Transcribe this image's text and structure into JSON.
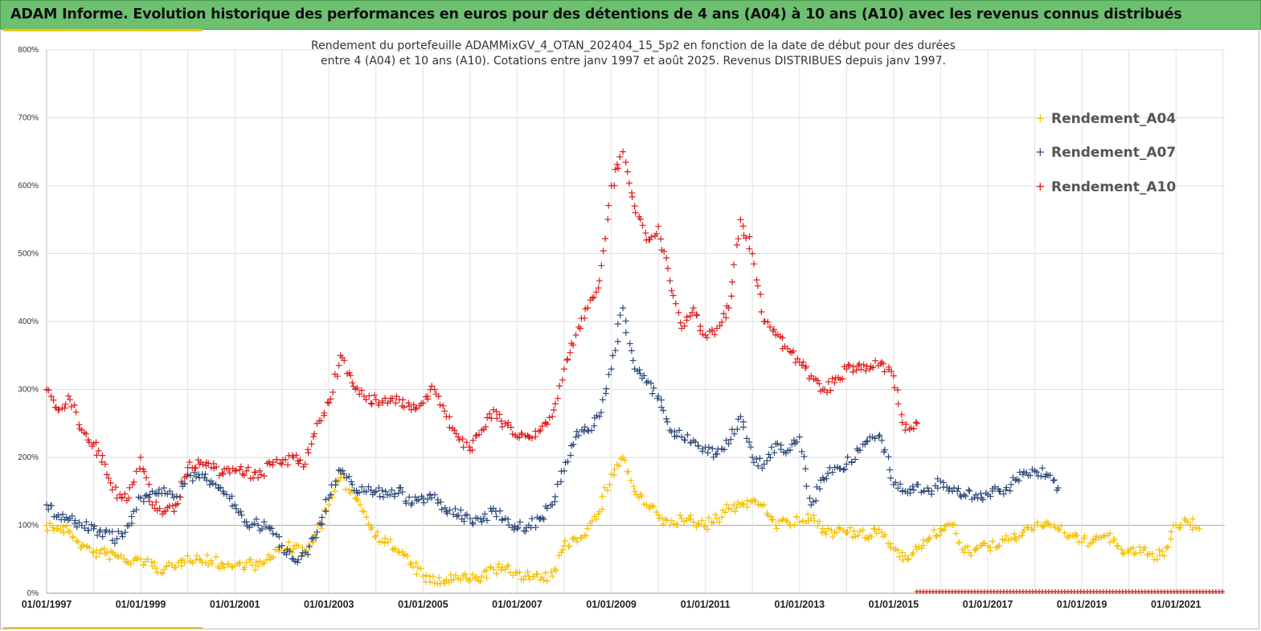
{
  "header": {
    "title": "ADAM Informe. Evolution historique des performances en euros pour des détentions de 4 ans (A04) à 10 ans (A10) avec les revenus connus distribués"
  },
  "chart_data": {
    "type": "scatter",
    "title_lines": [
      "Rendement du portefeuille ADAMMixGV_4_OTAN_202404_15_5p2  en fonction de la date de début pour des durées",
      "entre 4 (A04) et 10 ans (A10). Cotations entre janv 1997 et août 2025. Revenus DISTRIBUES depuis janv 1997."
    ],
    "xlabel": "",
    "ylabel": "",
    "xlim": [
      "1997-01-01",
      "2022-01-15"
    ],
    "ylim": [
      0,
      800
    ],
    "y_ticks": [
      "0%",
      "100%",
      "200%",
      "300%",
      "400%",
      "500%",
      "600%",
      "700%",
      "800%"
    ],
    "x_ticks": [
      "01/01/1997",
      "01/01/1999",
      "01/01/2001",
      "01/01/2003",
      "01/01/2005",
      "01/01/2007",
      "01/01/2009",
      "01/01/2011",
      "01/01/2013",
      "01/01/2015",
      "01/01/2017",
      "01/01/2019",
      "01/01/2021"
    ],
    "grid": true,
    "legend_position": "top-right",
    "marker": "+",
    "series": [
      {
        "name": "Rendement_A04",
        "color": "#f5c000",
        "x": [
          "1997-01-01",
          "1997-04-01",
          "1997-07-01",
          "1997-10-01",
          "1998-01-01",
          "1998-04-01",
          "1998-07-01",
          "1998-10-01",
          "1999-01-01",
          "1999-04-01",
          "1999-07-01",
          "1999-10-01",
          "2000-01-01",
          "2000-04-01",
          "2000-07-01",
          "2000-10-01",
          "2001-01-01",
          "2001-04-01",
          "2001-07-01",
          "2001-10-01",
          "2002-01-01",
          "2002-04-01",
          "2002-07-01",
          "2002-10-01",
          "2003-01-01",
          "2003-04-01",
          "2003-07-01",
          "2003-10-01",
          "2004-01-01",
          "2004-04-01",
          "2004-07-01",
          "2004-10-01",
          "2005-01-01",
          "2005-04-01",
          "2005-07-01",
          "2005-10-01",
          "2006-01-01",
          "2006-04-01",
          "2006-07-01",
          "2006-10-01",
          "2007-01-01",
          "2007-04-01",
          "2007-07-01",
          "2007-10-01",
          "2008-01-01",
          "2008-04-01",
          "2008-07-01",
          "2008-10-01",
          "2009-01-01",
          "2009-04-01",
          "2009-07-01",
          "2009-10-01",
          "2010-01-01",
          "2010-04-01",
          "2010-07-01",
          "2010-10-01",
          "2011-01-01",
          "2011-04-01",
          "2011-07-01",
          "2011-10-01",
          "2012-01-01",
          "2012-04-01",
          "2012-07-01",
          "2012-10-01",
          "2013-01-01",
          "2013-04-01",
          "2013-07-01",
          "2013-10-01",
          "2014-01-01",
          "2014-04-01",
          "2014-07-01",
          "2014-10-01",
          "2015-01-01",
          "2015-04-01",
          "2015-07-01",
          "2015-10-01",
          "2016-01-01",
          "2016-04-01",
          "2016-07-01",
          "2016-10-01",
          "2017-01-01",
          "2017-04-01",
          "2017-07-01",
          "2017-10-01",
          "2018-01-01",
          "2018-04-01",
          "2018-07-01",
          "2018-10-01",
          "2019-01-01",
          "2019-04-01",
          "2019-07-01",
          "2019-10-01",
          "2020-01-01",
          "2020-04-01",
          "2020-07-01",
          "2020-10-01",
          "2021-01-01",
          "2021-04-01",
          "2021-07-01"
        ],
        "values": [
          100,
          95,
          90,
          70,
          60,
          58,
          55,
          45,
          50,
          40,
          35,
          38,
          55,
          50,
          48,
          42,
          40,
          45,
          40,
          50,
          70,
          65,
          60,
          90,
          130,
          170,
          150,
          120,
          85,
          75,
          60,
          45,
          25,
          15,
          20,
          22,
          20,
          25,
          35,
          35,
          30,
          25,
          20,
          25,
          70,
          80,
          95,
          120,
          175,
          200,
          150,
          130,
          115,
          100,
          110,
          105,
          100,
          110,
          125,
          130,
          135,
          130,
          100,
          105,
          105,
          110,
          95,
          90,
          90,
          85,
          85,
          90,
          65,
          55,
          65,
          80,
          95,
          100,
          60,
          65,
          70,
          70,
          80,
          90,
          100,
          105,
          95,
          85,
          75,
          80,
          85,
          70,
          60,
          60,
          58,
          55,
          100,
          105,
          95
        ]
      },
      {
        "name": "Rendement_A07",
        "color": "#2e4a7a",
        "x": [
          "1997-01-01",
          "1997-04-01",
          "1997-07-01",
          "1997-10-01",
          "1998-01-01",
          "1998-04-01",
          "1998-07-01",
          "1998-10-01",
          "1999-01-01",
          "1999-04-01",
          "1999-07-01",
          "1999-10-01",
          "2000-01-01",
          "2000-04-01",
          "2000-07-01",
          "2000-10-01",
          "2001-01-01",
          "2001-04-01",
          "2001-07-01",
          "2001-10-01",
          "2002-01-01",
          "2002-04-01",
          "2002-07-01",
          "2002-10-01",
          "2003-01-01",
          "2003-04-01",
          "2003-07-01",
          "2003-10-01",
          "2004-01-01",
          "2004-04-01",
          "2004-07-01",
          "2004-10-01",
          "2005-01-01",
          "2005-04-01",
          "2005-07-01",
          "2005-10-01",
          "2006-01-01",
          "2006-04-01",
          "2006-07-01",
          "2006-10-01",
          "2007-01-01",
          "2007-04-01",
          "2007-07-01",
          "2007-10-01",
          "2008-01-01",
          "2008-04-01",
          "2008-07-01",
          "2008-10-01",
          "2009-01-01",
          "2009-04-01",
          "2009-07-01",
          "2009-10-01",
          "2010-01-01",
          "2010-04-01",
          "2010-07-01",
          "2010-10-01",
          "2011-01-01",
          "2011-04-01",
          "2011-07-01",
          "2011-10-01",
          "2012-01-01",
          "2012-04-01",
          "2012-07-01",
          "2012-10-01",
          "2013-01-01",
          "2013-04-01",
          "2013-07-01",
          "2013-10-01",
          "2014-01-01",
          "2014-04-01",
          "2014-07-01",
          "2014-10-01",
          "2015-01-01",
          "2015-04-01",
          "2015-07-01",
          "2015-10-01",
          "2016-01-01",
          "2016-04-01",
          "2016-07-01",
          "2016-10-01",
          "2017-01-01",
          "2017-04-01",
          "2017-07-01",
          "2017-10-01",
          "2018-01-01",
          "2018-04-01",
          "2018-07-01"
        ],
        "values": [
          130,
          115,
          110,
          100,
          95,
          90,
          80,
          100,
          140,
          150,
          155,
          130,
          175,
          170,
          165,
          150,
          130,
          105,
          100,
          95,
          70,
          50,
          60,
          90,
          140,
          180,
          160,
          150,
          150,
          145,
          155,
          130,
          140,
          145,
          120,
          115,
          110,
          105,
          125,
          110,
          95,
          100,
          110,
          130,
          180,
          230,
          240,
          260,
          330,
          420,
          330,
          310,
          290,
          240,
          230,
          225,
          215,
          205,
          220,
          260,
          200,
          190,
          220,
          210,
          230,
          130,
          170,
          185,
          190,
          210,
          230,
          225,
          160,
          150,
          160,
          150,
          165,
          150,
          145,
          145,
          145,
          150,
          160,
          175,
          180,
          175,
          155
        ]
      },
      {
        "name": "Rendement_A10",
        "color": "#e01b1b",
        "x": [
          "1997-01-01",
          "1997-04-01",
          "1997-07-01",
          "1997-10-01",
          "1998-01-01",
          "1998-04-01",
          "1998-07-01",
          "1998-10-01",
          "1999-01-01",
          "1999-04-01",
          "1999-07-01",
          "1999-10-01",
          "2000-01-01",
          "2000-04-01",
          "2000-07-01",
          "2000-10-01",
          "2001-01-01",
          "2001-04-01",
          "2001-07-01",
          "2001-10-01",
          "2002-01-01",
          "2002-04-01",
          "2002-07-01",
          "2002-10-01",
          "2003-01-01",
          "2003-04-01",
          "2003-07-01",
          "2003-10-01",
          "2004-01-01",
          "2004-04-01",
          "2004-07-01",
          "2004-10-01",
          "2005-01-01",
          "2005-04-01",
          "2005-07-01",
          "2005-10-01",
          "2006-01-01",
          "2006-04-01",
          "2006-07-01",
          "2006-10-01",
          "2007-01-01",
          "2007-04-01",
          "2007-07-01",
          "2007-10-01",
          "2008-01-01",
          "2008-04-01",
          "2008-07-01",
          "2008-10-01",
          "2009-01-01",
          "2009-04-01",
          "2009-07-01",
          "2009-10-01",
          "2010-01-01",
          "2010-04-01",
          "2010-07-01",
          "2010-10-01",
          "2011-01-01",
          "2011-04-01",
          "2011-07-01",
          "2011-10-01",
          "2012-01-01",
          "2012-04-01",
          "2012-07-01",
          "2012-10-01",
          "2013-01-01",
          "2013-04-01",
          "2013-07-01",
          "2013-10-01",
          "2014-01-01",
          "2014-04-01",
          "2014-07-01",
          "2014-10-01",
          "2015-01-01",
          "2015-04-01",
          "2015-07-01"
        ],
        "values": [
          300,
          270,
          285,
          240,
          220,
          190,
          140,
          140,
          200,
          130,
          120,
          130,
          185,
          190,
          185,
          175,
          180,
          180,
          170,
          190,
          190,
          200,
          190,
          250,
          280,
          350,
          310,
          290,
          285,
          280,
          285,
          270,
          280,
          300,
          260,
          230,
          210,
          240,
          270,
          250,
          230,
          230,
          240,
          260,
          330,
          380,
          420,
          460,
          600,
          650,
          570,
          520,
          540,
          460,
          390,
          420,
          380,
          390,
          420,
          550,
          500,
          400,
          380,
          360,
          340,
          320,
          300,
          310,
          330,
          335,
          330,
          340,
          320,
          240,
          250
        ]
      }
    ],
    "footnote_marker_range": [
      "2015-07-01",
      "2021-12-31"
    ]
  }
}
